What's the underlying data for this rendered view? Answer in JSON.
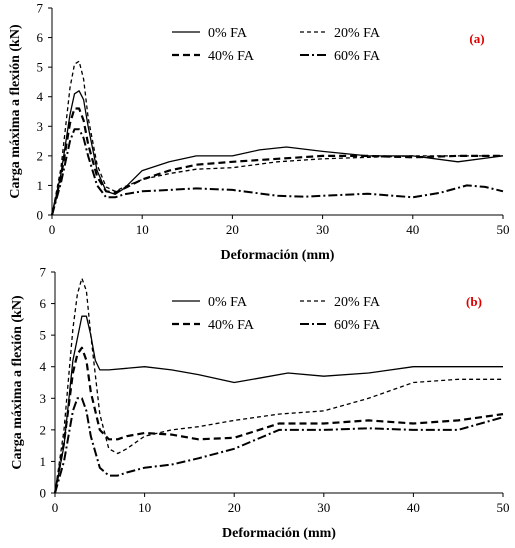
{
  "chart_data": [
    {
      "type": "line",
      "panel_label": "(a)",
      "xlabel": "Deformación (mm)",
      "ylabel": "Carga máxima a flexión (kN)",
      "xlim": [
        0,
        50
      ],
      "ylim": [
        0,
        7
      ],
      "xticks": [
        0,
        10,
        20,
        30,
        40,
        50
      ],
      "yticks": [
        0,
        1,
        2,
        3,
        4,
        5,
        6,
        7
      ],
      "grid": false,
      "legend": "top-center",
      "series": [
        {
          "name": "0% FA",
          "style": "solid",
          "x": [
            0,
            1,
            2,
            2.5,
            3,
            3.5,
            4,
            5,
            6,
            7,
            8,
            10,
            13,
            16,
            20,
            23,
            26,
            30,
            35,
            40,
            45,
            50
          ],
          "y": [
            0,
            1.4,
            3.4,
            4.1,
            4.2,
            3.9,
            3.0,
            1.5,
            0.8,
            0.7,
            0.9,
            1.5,
            1.8,
            2.0,
            2.0,
            2.2,
            2.3,
            2.15,
            2.0,
            2.0,
            1.8,
            2.0
          ]
        },
        {
          "name": "20% FA",
          "style": "dashed",
          "x": [
            0,
            1,
            2,
            2.5,
            3,
            3.5,
            4,
            5,
            6,
            7,
            8,
            10,
            13,
            16,
            20,
            25,
            30,
            35,
            40,
            45,
            50
          ],
          "y": [
            0,
            1.6,
            4.3,
            5.1,
            5.2,
            4.6,
            3.3,
            1.7,
            0.95,
            0.8,
            0.95,
            1.2,
            1.4,
            1.55,
            1.6,
            1.8,
            1.9,
            1.95,
            2.0,
            2.0,
            2.0
          ]
        },
        {
          "name": "40% FA",
          "style": "dashdash",
          "x": [
            0,
            1,
            2,
            2.5,
            3,
            3.5,
            4,
            5,
            6,
            7,
            8,
            10,
            13,
            16,
            20,
            25,
            30,
            35,
            40,
            45,
            50
          ],
          "y": [
            0,
            1.3,
            3.1,
            3.6,
            3.6,
            3.2,
            2.4,
            1.3,
            0.8,
            0.75,
            0.9,
            1.2,
            1.5,
            1.7,
            1.8,
            1.9,
            2.0,
            2.0,
            1.95,
            2.0,
            2.0
          ]
        },
        {
          "name": "60% FA",
          "style": "dashdot",
          "x": [
            0,
            1,
            2,
            2.5,
            3,
            3.5,
            4,
            5,
            6,
            7,
            8,
            10,
            13,
            16,
            20,
            25,
            28,
            30,
            35,
            40,
            43,
            46,
            48,
            50
          ],
          "y": [
            0,
            1.1,
            2.5,
            2.9,
            2.9,
            2.6,
            2.0,
            1.0,
            0.6,
            0.6,
            0.7,
            0.8,
            0.85,
            0.9,
            0.85,
            0.65,
            0.62,
            0.65,
            0.72,
            0.6,
            0.75,
            1.0,
            0.95,
            0.8
          ]
        }
      ]
    },
    {
      "type": "line",
      "panel_label": "(b)",
      "xlabel": "Deformación (mm)",
      "ylabel": "Carga máxima a flexión (kN)",
      "xlim": [
        0,
        50
      ],
      "ylim": [
        0,
        7
      ],
      "xticks": [
        0,
        10,
        20,
        30,
        40,
        50
      ],
      "yticks": [
        0,
        1,
        2,
        3,
        4,
        5,
        6,
        7
      ],
      "grid": false,
      "legend": "top-center",
      "series": [
        {
          "name": "0% FA",
          "style": "solid",
          "x": [
            0,
            1,
            2,
            3,
            3.5,
            4,
            4.5,
            5,
            6,
            8,
            10,
            13,
            16,
            20,
            23,
            26,
            30,
            35,
            40,
            45,
            50
          ],
          "y": [
            0,
            1.5,
            4.2,
            5.6,
            5.6,
            5.0,
            4.2,
            3.9,
            3.9,
            3.95,
            4.0,
            3.9,
            3.75,
            3.5,
            3.65,
            3.8,
            3.7,
            3.8,
            4.0,
            4.0,
            4.0
          ]
        },
        {
          "name": "20% FA",
          "style": "dashed",
          "x": [
            0,
            1,
            2,
            2.5,
            3,
            3.5,
            4,
            5,
            6,
            7,
            8,
            10,
            13,
            16,
            20,
            25,
            30,
            35,
            40,
            45,
            50
          ],
          "y": [
            0,
            2.0,
            5.2,
            6.3,
            6.8,
            6.4,
            5.0,
            2.5,
            1.4,
            1.25,
            1.4,
            1.8,
            2.0,
            2.1,
            2.3,
            2.5,
            2.6,
            3.0,
            3.5,
            3.6,
            3.6
          ]
        },
        {
          "name": "40% FA",
          "style": "dashdash",
          "x": [
            0,
            1,
            2,
            2.5,
            3,
            3.5,
            4,
            5,
            6,
            7,
            8,
            10,
            13,
            16,
            20,
            25,
            30,
            35,
            40,
            45,
            50
          ],
          "y": [
            0,
            1.6,
            3.8,
            4.4,
            4.6,
            4.2,
            3.2,
            2.0,
            1.7,
            1.7,
            1.8,
            1.9,
            1.85,
            1.7,
            1.75,
            2.2,
            2.2,
            2.3,
            2.2,
            2.3,
            2.5
          ]
        },
        {
          "name": "60% FA",
          "style": "dashdot",
          "x": [
            0,
            1,
            2,
            2.5,
            3,
            3.5,
            4,
            5,
            6,
            7,
            8,
            10,
            13,
            16,
            20,
            25,
            30,
            35,
            40,
            45,
            50
          ],
          "y": [
            0,
            1.0,
            2.6,
            3.0,
            3.0,
            2.6,
            1.8,
            0.8,
            0.55,
            0.55,
            0.65,
            0.8,
            0.9,
            1.1,
            1.4,
            2.0,
            2.0,
            2.05,
            2.0,
            2.0,
            2.4
          ]
        }
      ]
    }
  ]
}
